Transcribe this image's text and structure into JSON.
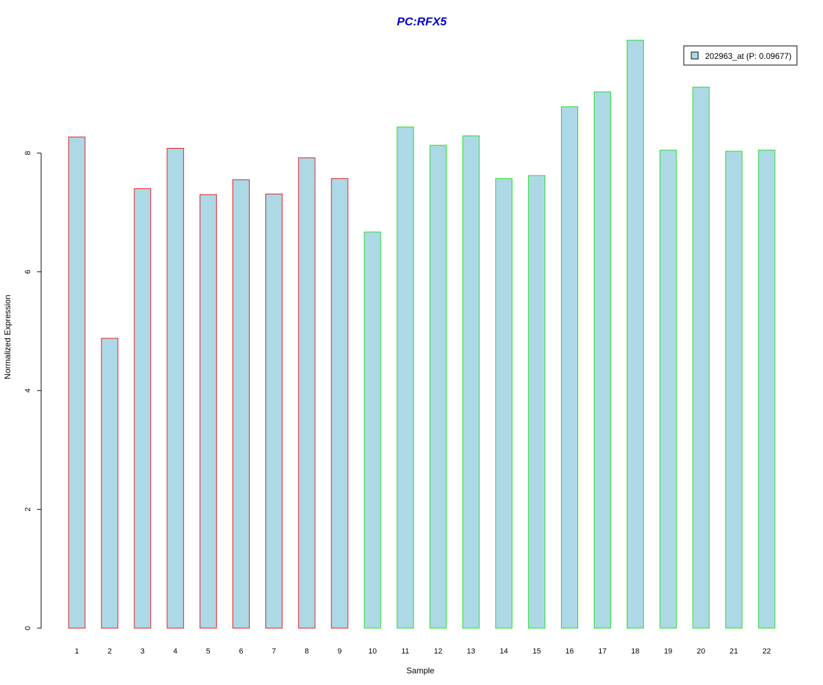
{
  "chart_data": {
    "type": "bar",
    "title": "PC:RFX5",
    "xlabel": "Sample",
    "ylabel": "Normalized Expression",
    "categories": [
      "1",
      "2",
      "3",
      "4",
      "5",
      "6",
      "7",
      "8",
      "9",
      "10",
      "11",
      "12",
      "13",
      "14",
      "15",
      "16",
      "17",
      "18",
      "19",
      "20",
      "21",
      "22"
    ],
    "series": [
      {
        "name": "202963_at (P: 0.09677)",
        "values": [
          8.27,
          4.88,
          7.4,
          8.08,
          7.3,
          7.55,
          7.31,
          7.92,
          7.57,
          6.67,
          8.44,
          8.13,
          8.29,
          7.57,
          7.62,
          8.78,
          9.03,
          9.9,
          8.05,
          9.11,
          8.03,
          8.05
        ]
      }
    ],
    "group_border_colors": [
      "#E41A1C",
      "#E41A1C",
      "#E41A1C",
      "#E41A1C",
      "#E41A1C",
      "#E41A1C",
      "#E41A1C",
      "#E41A1C",
      "#E41A1C",
      "#22DD22",
      "#22DD22",
      "#22DD22",
      "#22DD22",
      "#22DD22",
      "#22DD22",
      "#22DD22",
      "#22DD22",
      "#22DD22",
      "#22DD22",
      "#22DD22",
      "#22DD22",
      "#22DD22"
    ],
    "ylim": [
      0,
      9.9
    ],
    "yticks": [
      0,
      2,
      4,
      6,
      8
    ],
    "grid": false,
    "legend_position": "top-right"
  },
  "colors": {
    "bar_fill": "#ADD8E6",
    "title": "#0000CD"
  }
}
